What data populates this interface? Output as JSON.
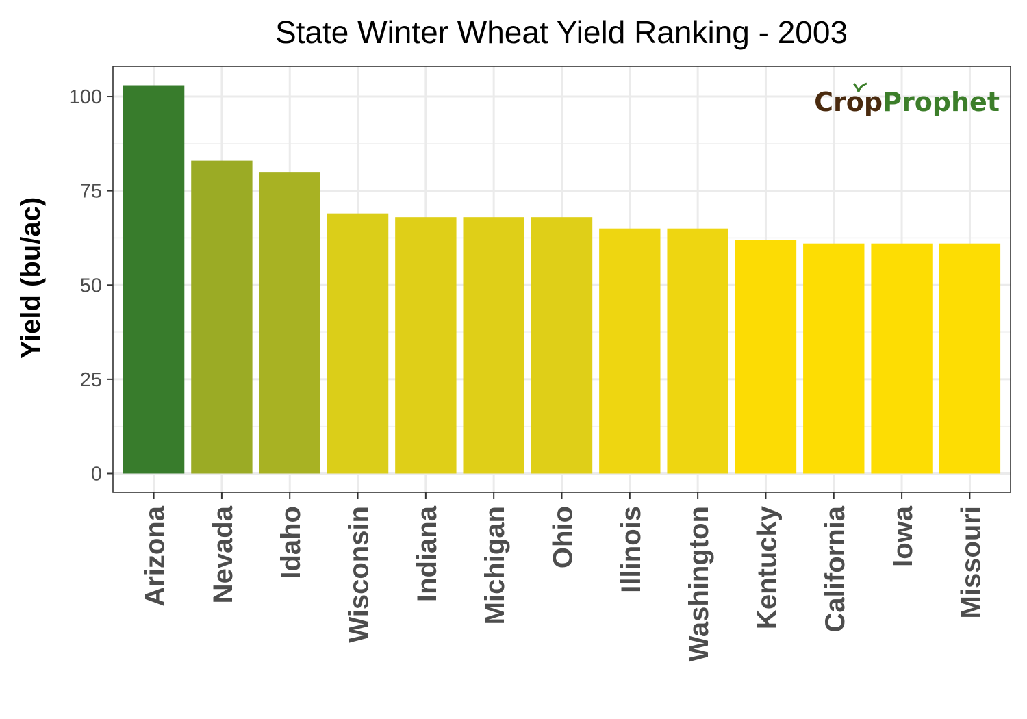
{
  "chart_data": {
    "type": "bar",
    "title": "State Winter Wheat Yield Ranking - 2003",
    "xlabel": "",
    "ylabel": "Yield (bu/ac)",
    "ylim": [
      -5,
      108
    ],
    "yticks": [
      0,
      25,
      50,
      75,
      100
    ],
    "grid": true,
    "categories": [
      "Arizona",
      "Nevada",
      "Idaho",
      "Wisconsin",
      "Indiana",
      "Michigan",
      "Ohio",
      "Illinois",
      "Washington",
      "Kentucky",
      "California",
      "Iowa",
      "Missouri"
    ],
    "values": [
      103,
      83,
      80,
      69,
      68,
      68,
      68,
      65,
      65,
      62,
      61,
      61,
      61
    ],
    "bar_colors": [
      "#387C2C",
      "#9BAB25",
      "#A8B223",
      "#DBCE19",
      "#DFCF18",
      "#DFCF18",
      "#DFCF18",
      "#EED611",
      "#EED611",
      "#FCDC04",
      "#FDDD03",
      "#FDDD03",
      "#FDDD03"
    ]
  },
  "logo": {
    "part1": "Crop",
    "part2": "Prophet",
    "color1": "#4A2A0E",
    "color2": "#3C7E2A"
  }
}
